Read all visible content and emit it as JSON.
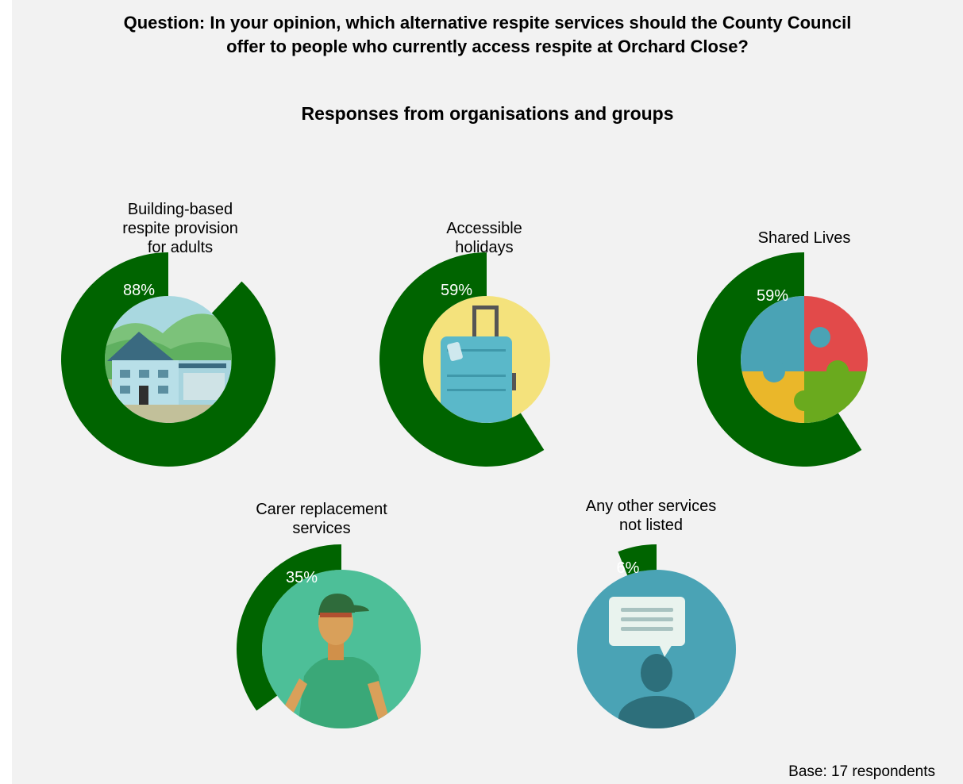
{
  "question": "Question: In your opinion, which alternative respite services should the County Council offer to people who currently access respite at Orchard Close?",
  "question_line1": "Question: In your opinion, which alternative respite services should the County Council",
  "question_line2": "offer to people who currently access respite at Orchard Close?",
  "subtitle": "Responses from organisations and groups",
  "base_note": "Base: 17 respondents",
  "colors": {
    "ring": "#006400",
    "background": "#f2f2f2",
    "label_text": "#ffffff"
  },
  "chart_data": {
    "type": "pie",
    "title": "Responses from organisations and groups",
    "unit": "%",
    "categories": [
      "Building-based respite provision for adults",
      "Accessible holidays",
      "Shared Lives",
      "Carer replacement services",
      "Any other services not listed"
    ],
    "values": [
      88,
      59,
      59,
      35,
      6
    ],
    "items": [
      {
        "label_lines": [
          "Building-based",
          "respite provision",
          "for adults"
        ],
        "value": 88,
        "value_label": "88%",
        "icon": "house-icon"
      },
      {
        "label_lines": [
          "Accessible",
          "holidays"
        ],
        "value": 59,
        "value_label": "59%",
        "icon": "suitcase-icon"
      },
      {
        "label_lines": [
          "Shared Lives"
        ],
        "value": 59,
        "value_label": "59%",
        "icon": "puzzle-icon"
      },
      {
        "label_lines": [
          "Carer replacement",
          "services"
        ],
        "value": 35,
        "value_label": "35%",
        "icon": "carer-icon"
      },
      {
        "label_lines": [
          "Any other services",
          "not listed"
        ],
        "value": 6,
        "value_label": "6%",
        "icon": "chat-person-icon"
      }
    ]
  }
}
